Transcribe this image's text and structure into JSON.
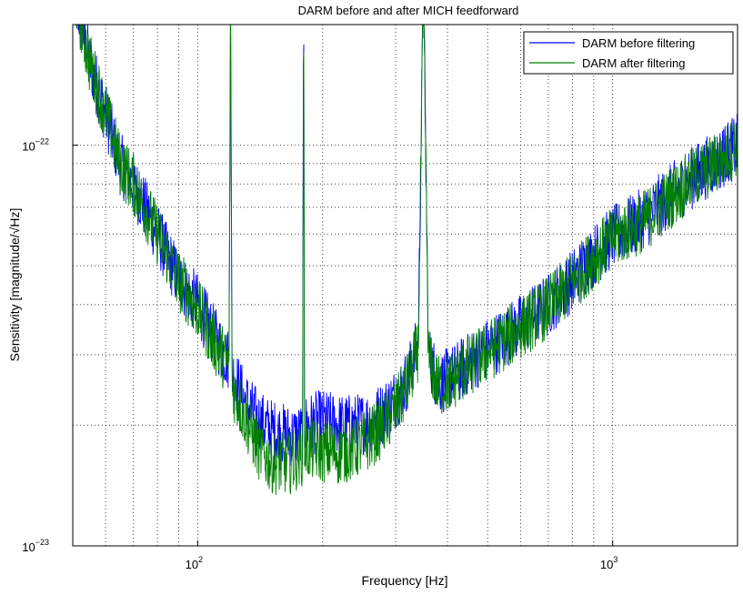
{
  "chart_data": {
    "type": "line",
    "title": "DARM before and after MICH feedforward",
    "xlabel": "Frequency [Hz]",
    "ylabel": "Sensitivity [magnitude/√Hz]",
    "xscale": "log",
    "yscale": "log",
    "xlim": [
      50,
      2000
    ],
    "ylim": [
      1e-23,
      2e-22
    ],
    "grid": true,
    "legend_position": "top-right",
    "x_ticks": [
      {
        "value": 100,
        "base": "10",
        "exp": "2"
      },
      {
        "value": 1000,
        "base": "10",
        "exp": "3"
      }
    ],
    "y_ticks": [
      {
        "value": 1e-23,
        "base": "10",
        "exp": "−23"
      },
      {
        "value": 1e-22,
        "base": "10",
        "exp": "−22"
      }
    ],
    "series": [
      {
        "name": "DARM before filtering",
        "color": "#0000ff",
        "x": [
          50,
          55,
          60,
          65,
          70,
          80,
          90,
          100,
          110,
          119,
          120,
          121,
          130,
          140,
          150,
          160,
          170,
          179,
          180,
          181,
          200,
          220,
          240,
          260,
          280,
          300,
          320,
          340,
          350,
          360,
          380,
          400,
          450,
          500,
          600,
          700,
          800,
          900,
          1000,
          1200,
          1400,
          1600,
          1800,
          2000
        ],
        "y": [
          2.5e-22,
          1.6e-22,
          1.2e-22,
          9e-23,
          8e-23,
          6e-23,
          4.6e-23,
          4e-23,
          3.3e-23,
          2.9e-23,
          2.5e-22,
          2.7e-23,
          2.3e-23,
          2.05e-23,
          1.95e-23,
          1.9e-23,
          1.88e-23,
          1.9e-23,
          2.5e-22,
          2e-23,
          2.05e-23,
          2e-23,
          2e-23,
          2.05e-23,
          2.15e-23,
          2.35e-23,
          2.6e-23,
          3.2e-23,
          2.5e-22,
          3e-23,
          2.55e-23,
          2.6e-23,
          2.85e-23,
          3.1e-23,
          3.55e-23,
          4e-23,
          4.6e-23,
          5.3e-23,
          5.9e-23,
          6.6e-23,
          7.6e-23,
          8.5e-23,
          9.2e-23,
          1e-22
        ]
      },
      {
        "name": "DARM after filtering",
        "color": "#008000",
        "x": [
          50,
          55,
          60,
          65,
          70,
          80,
          90,
          100,
          110,
          119,
          120,
          121,
          130,
          140,
          150,
          160,
          170,
          179,
          180,
          181,
          200,
          220,
          240,
          260,
          280,
          300,
          320,
          340,
          350,
          360,
          380,
          400,
          450,
          500,
          600,
          700,
          800,
          900,
          1000,
          1200,
          1400,
          1600,
          1800,
          2000
        ],
        "y": [
          2.5e-22,
          1.6e-22,
          1.2e-22,
          9e-23,
          8e-23,
          6e-23,
          4.6e-23,
          3.9e-23,
          3.2e-23,
          2.8e-23,
          2.5e-22,
          2.5e-23,
          2.1e-23,
          1.75e-23,
          1.62e-23,
          1.6e-23,
          1.62e-23,
          1.7e-23,
          2.5e-22,
          1.75e-23,
          1.72e-23,
          1.7e-23,
          1.75e-23,
          1.85e-23,
          2e-23,
          2.2e-23,
          2.5e-23,
          3.1e-23,
          2.5e-22,
          2.9e-23,
          2.5e-23,
          2.55e-23,
          2.8e-23,
          3.05e-23,
          3.5e-23,
          3.95e-23,
          4.55e-23,
          5.25e-23,
          5.85e-23,
          6.5e-23,
          7.5e-23,
          8.4e-23,
          9.1e-23,
          1e-22
        ]
      }
    ]
  }
}
